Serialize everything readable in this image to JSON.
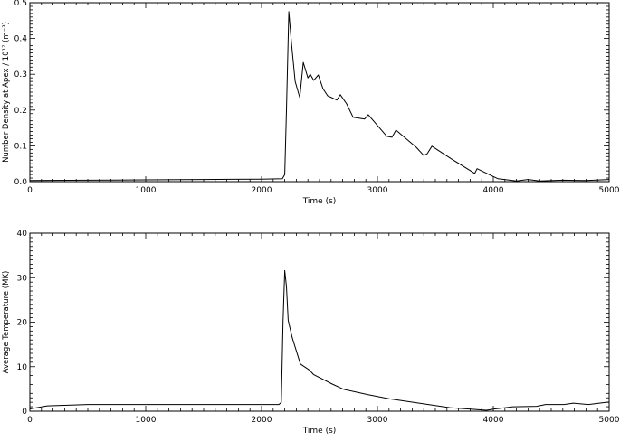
{
  "chart_data": [
    {
      "type": "line",
      "xlabel": "Time (s)",
      "ylabel": "Number Density at Apex / 10¹⁷ (m⁻³)",
      "xlim": [
        0,
        5000
      ],
      "ylim": [
        0,
        0.5
      ],
      "xticks": [
        "0",
        "1000",
        "2000",
        "3000",
        "4000",
        "5000"
      ],
      "yticks": [
        "0.0",
        "0.1",
        "0.2",
        "0.3",
        "0.4",
        "0.5"
      ],
      "grid": false,
      "x": [
        0,
        500,
        1000,
        1500,
        2000,
        2180,
        2200,
        2215,
        2235,
        2260,
        2290,
        2330,
        2360,
        2400,
        2420,
        2450,
        2490,
        2530,
        2570,
        2650,
        2680,
        2735,
        2790,
        2890,
        2920,
        3000,
        3080,
        3125,
        3160,
        3335,
        3400,
        3430,
        3470,
        3650,
        3840,
        3860,
        4040,
        4200,
        4300,
        4400,
        4600,
        4800,
        5000
      ],
      "y": [
        0.003,
        0.004,
        0.005,
        0.006,
        0.007,
        0.008,
        0.02,
        0.2,
        0.475,
        0.38,
        0.28,
        0.235,
        0.333,
        0.29,
        0.3,
        0.283,
        0.298,
        0.26,
        0.24,
        0.228,
        0.243,
        0.217,
        0.18,
        0.175,
        0.187,
        0.157,
        0.127,
        0.124,
        0.144,
        0.096,
        0.073,
        0.078,
        0.099,
        0.061,
        0.023,
        0.036,
        0.008,
        0.002,
        0.006,
        0.002,
        0.004,
        0.003,
        0.006
      ]
    },
    {
      "type": "line",
      "xlabel": "Time (s)",
      "ylabel": "Average Temperature (MK)",
      "xlim": [
        0,
        5000
      ],
      "ylim": [
        0,
        40
      ],
      "xticks": [
        "0",
        "1000",
        "2000",
        "3000",
        "4000",
        "5000"
      ],
      "yticks": [
        "0",
        "10",
        "20",
        "30",
        "40"
      ],
      "grid": false,
      "x": [
        0,
        150,
        500,
        1000,
        1500,
        2000,
        2150,
        2170,
        2185,
        2200,
        2215,
        2230,
        2265,
        2335,
        2415,
        2450,
        2610,
        2710,
        2920,
        3100,
        3360,
        3625,
        3940,
        4015,
        4170,
        4375,
        4450,
        4610,
        4690,
        4820,
        4980,
        5000
      ],
      "y": [
        0.5,
        1.2,
        1.5,
        1.5,
        1.5,
        1.5,
        1.5,
        2,
        20,
        31.6,
        28,
        20.4,
        16.5,
        10.6,
        9.2,
        8.2,
        6.1,
        4.9,
        3.7,
        2.8,
        1.8,
        0.8,
        0.2,
        0.5,
        1.0,
        1.1,
        1.5,
        1.5,
        1.8,
        1.5,
        2.0,
        2.0
      ]
    }
  ]
}
